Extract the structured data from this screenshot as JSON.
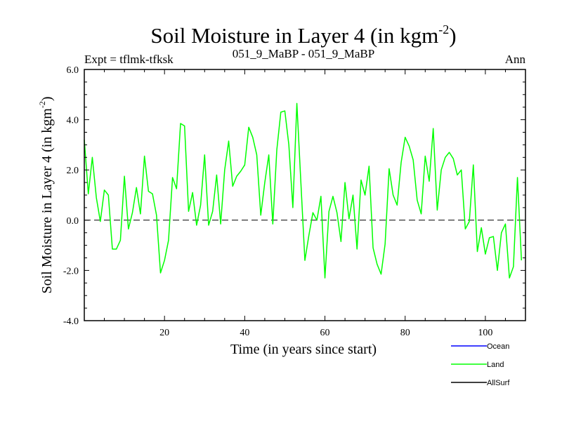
{
  "chart_data": {
    "type": "line",
    "title": "Soil Moisture in Layer 4 (in kgm",
    "title_sup": "-2",
    "title_close": ")",
    "subtitle_left": "Expt = tflmk-tfksk",
    "subtitle_center": "051_9_MaBP - 051_9_MaBP",
    "subtitle_right": "Ann",
    "xlabel": "Time (in years since start)",
    "ylabel": "Soil Moisture in Layer 4 (in kgm",
    "ylabel_sup": "-2",
    "ylabel_close": ")",
    "xlim": [
      0,
      110
    ],
    "ylim": [
      -4.0,
      6.0
    ],
    "x_ticks": [
      20,
      40,
      60,
      80,
      100
    ],
    "y_ticks": [
      -4.0,
      -2.0,
      0.0,
      2.0,
      4.0,
      6.0
    ],
    "y_tick_labels": [
      "-4.0",
      "-2.0",
      "0.0",
      "2.0",
      "4.0",
      "6.0"
    ],
    "zero_line": "dashed",
    "legend_position": "bottom-right",
    "series": [
      {
        "name": "Ocean",
        "color": "#0000ff",
        "values": []
      },
      {
        "name": "Land",
        "color": "#00ff00",
        "values": [
          3.2,
          1.05,
          2.5,
          0.9,
          -0.05,
          1.2,
          1.0,
          -1.15,
          -1.15,
          -0.8,
          1.75,
          -0.35,
          0.3,
          1.3,
          0.25,
          2.55,
          1.15,
          1.05,
          0.2,
          -2.1,
          -1.6,
          -0.8,
          1.7,
          1.25,
          3.85,
          3.75,
          0.35,
          1.1,
          -0.2,
          0.6,
          2.6,
          -0.2,
          0.35,
          1.8,
          -0.15,
          2.0,
          3.15,
          1.35,
          1.75,
          1.95,
          2.2,
          3.7,
          3.3,
          2.6,
          0.2,
          1.5,
          2.6,
          -0.15,
          2.8,
          4.3,
          4.35,
          3.0,
          0.5,
          4.65,
          1.5,
          -1.6,
          -0.6,
          0.3,
          0.0,
          0.95,
          -2.3,
          0.35,
          0.95,
          0.3,
          -0.85,
          1.5,
          0.05,
          1.0,
          -1.15,
          1.6,
          1.0,
          2.15,
          -1.1,
          -1.75,
          -2.15,
          -0.95,
          2.05,
          1.0,
          0.6,
          2.3,
          3.3,
          2.95,
          2.4,
          0.8,
          0.25,
          2.55,
          1.55,
          3.65,
          0.4,
          2.0,
          2.5,
          2.7,
          2.45,
          1.8,
          2.0,
          -0.35,
          -0.05,
          2.2,
          -1.25,
          -0.3,
          -1.35,
          -0.7,
          -0.65,
          -2.0,
          -0.5,
          -0.15,
          -2.3,
          -1.85,
          1.7,
          -1.6
        ]
      },
      {
        "name": "AllSurf",
        "color": "#000000",
        "values": []
      }
    ]
  }
}
